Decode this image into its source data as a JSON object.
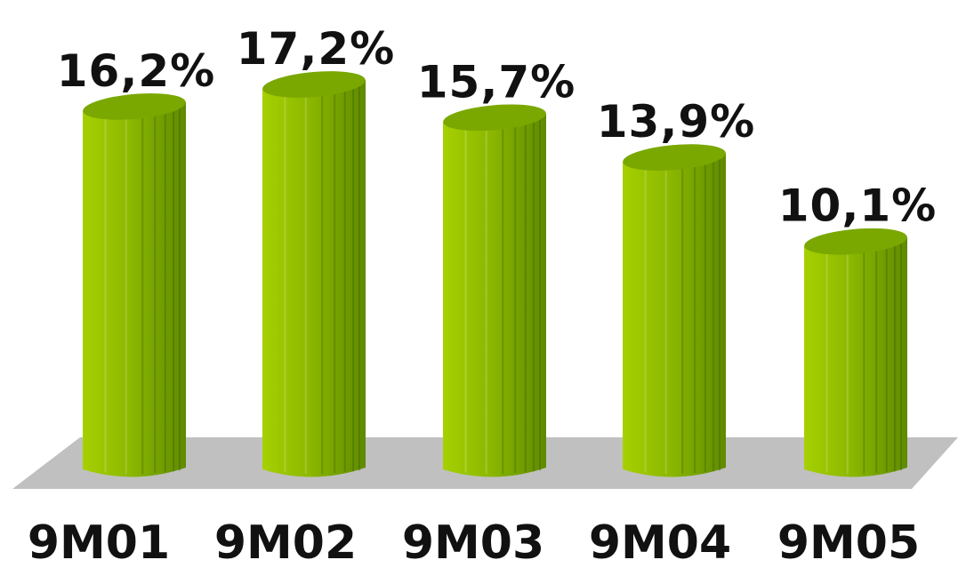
{
  "chart_data": {
    "type": "bar",
    "categories": [
      "9M01",
      "9M02",
      "9M03",
      "9M04",
      "9M05"
    ],
    "values": [
      16.2,
      17.2,
      15.7,
      13.9,
      10.1
    ],
    "value_labels": [
      "16,2%",
      "17,2%",
      "15,7%",
      "13,9%",
      "10,1%"
    ],
    "title": "",
    "xlabel": "",
    "ylabel": "",
    "ylim": [
      0,
      17.2
    ],
    "grid": false,
    "legend": "none",
    "bar_style": "3d-cylinder",
    "colors": {
      "bar_light": "#a6d000",
      "bar_mid": "#8cb800",
      "bar_dark": "#5f8a00",
      "bar_top": "#7aa800",
      "floor": "#c0c0c0"
    }
  }
}
